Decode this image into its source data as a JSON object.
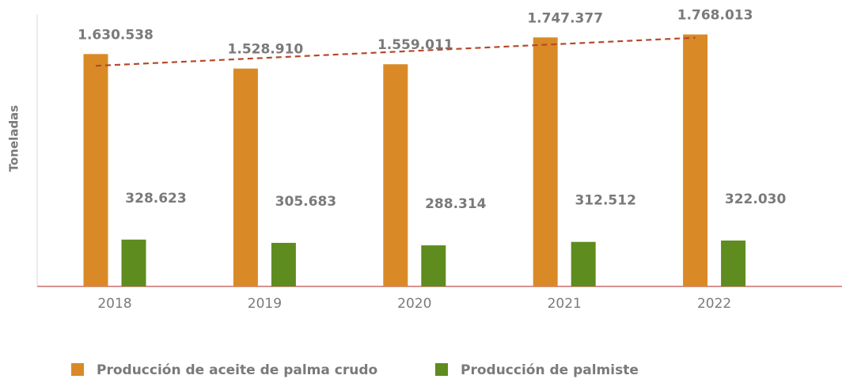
{
  "chart_data": {
    "type": "bar",
    "y_label": "Toneladas",
    "categories": [
      "2018",
      "2019",
      "2020",
      "2021",
      "2022"
    ],
    "series": [
      {
        "name": "Producción de aceite de palma crudo",
        "color": "#d98a27",
        "values": [
          1630538,
          1528910,
          1559011,
          1747377,
          1768013
        ],
        "value_labels": [
          "1.630.538",
          "1.528.910",
          "1.559.011",
          "1.747.377",
          "1.768.013"
        ]
      },
      {
        "name": "Producción de palmiste",
        "color": "#5e8c1f",
        "values": [
          328623,
          305683,
          288314,
          312512,
          322030
        ],
        "value_labels": [
          "328.623",
          "305.683",
          "288.314",
          "312.512",
          "322.030"
        ]
      }
    ],
    "ylim": [
      0,
      1910000
    ],
    "trendline": {
      "series": 0,
      "color": "#b5482a"
    },
    "axis_color": "#c0504d"
  }
}
